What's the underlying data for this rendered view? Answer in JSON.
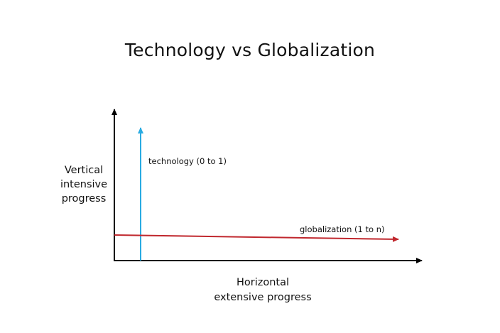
{
  "title": "Technology vs Globalization",
  "y_axis": {
    "label_lines": [
      "Vertical",
      "intensive",
      "progress"
    ]
  },
  "x_axis": {
    "label_lines": [
      "Horizontal",
      "extensive progress"
    ]
  },
  "technology_arrow": {
    "label": "technology (0 to 1)",
    "color": "#29abe2"
  },
  "globalization_arrow": {
    "label": "globalization (1 to n)",
    "color": "#c0272d"
  },
  "axis_color": "#000000"
}
